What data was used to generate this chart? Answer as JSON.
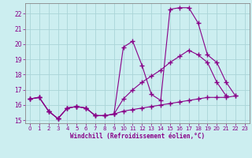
{
  "background_color": "#cceef0",
  "grid_color": "#aad4d8",
  "line_color": "#880088",
  "marker_color": "#880088",
  "xlabel": "Windchill (Refroidissement éolien,°C)",
  "xlabel_color": "#880088",
  "tick_color": "#880088",
  "xlim": [
    -0.5,
    23.5
  ],
  "ylim": [
    14.8,
    22.7
  ],
  "yticks": [
    15,
    16,
    17,
    18,
    19,
    20,
    21,
    22
  ],
  "xticks": [
    0,
    1,
    2,
    3,
    4,
    5,
    6,
    7,
    8,
    9,
    10,
    11,
    12,
    13,
    14,
    15,
    16,
    17,
    18,
    19,
    20,
    21,
    22,
    23
  ],
  "series": [
    {
      "x": [
        0,
        1,
        2,
        3,
        4,
        5,
        6,
        7,
        8,
        9,
        10,
        11,
        12,
        13,
        14,
        15,
        16,
        17,
        18,
        19,
        20,
        21,
        22
      ],
      "y": [
        16.4,
        16.5,
        15.6,
        15.1,
        15.8,
        15.9,
        15.8,
        15.3,
        15.3,
        15.4,
        19.8,
        20.2,
        18.6,
        16.7,
        16.3,
        22.3,
        22.4,
        22.4,
        21.4,
        19.3,
        18.8,
        17.5,
        16.6
      ]
    },
    {
      "x": [
        0,
        1,
        2,
        3,
        4,
        5,
        6,
        7,
        8,
        9,
        10,
        11,
        12,
        13,
        14,
        15,
        16,
        17,
        18,
        19,
        20,
        21,
        22
      ],
      "y": [
        16.4,
        16.5,
        15.6,
        15.1,
        15.8,
        15.9,
        15.8,
        15.3,
        15.3,
        15.4,
        16.4,
        17.0,
        17.5,
        17.9,
        18.3,
        18.8,
        19.2,
        19.6,
        19.3,
        18.8,
        17.5,
        16.6,
        null
      ]
    },
    {
      "x": [
        0,
        1,
        2,
        3,
        4,
        5,
        6,
        7,
        8,
        9,
        10,
        11,
        12,
        13,
        14,
        15,
        16,
        17,
        18,
        19,
        20,
        21,
        22
      ],
      "y": [
        16.4,
        16.5,
        15.6,
        15.1,
        15.8,
        15.9,
        15.8,
        15.3,
        15.3,
        15.4,
        15.6,
        15.7,
        15.8,
        15.9,
        16.0,
        16.1,
        16.2,
        16.3,
        16.4,
        16.5,
        16.5,
        16.5,
        16.6
      ]
    }
  ]
}
